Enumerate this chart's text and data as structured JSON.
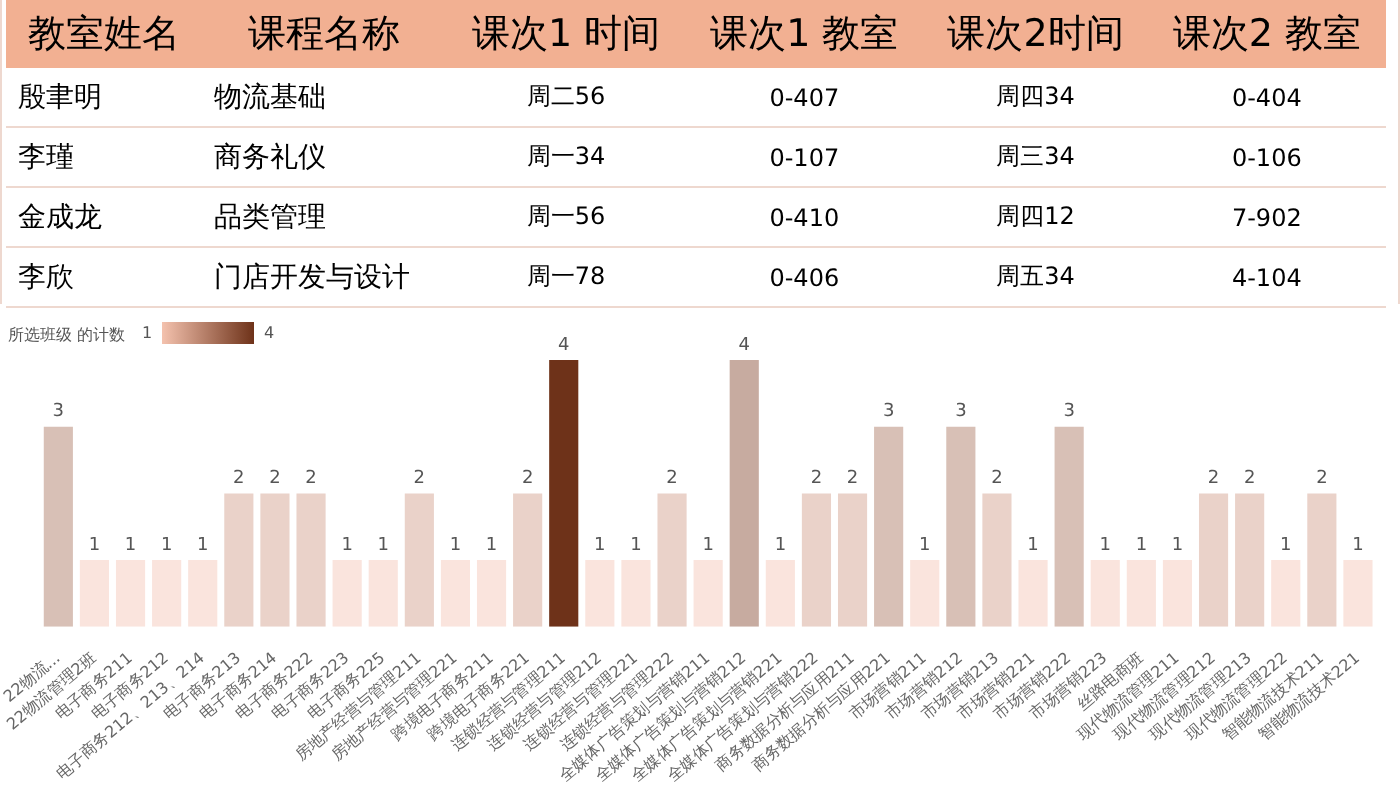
{
  "chart_data": [
    {
      "type": "heatmap",
      "ylabel": "教室姓名",
      "categories": [
        "课程名称",
        "课次1 时间",
        "课次1 教室",
        "课次2时间",
        "课次2 教室"
      ],
      "y_categories": [
        "殷聿明",
        "李瑾",
        "金成龙",
        "李欣"
      ],
      "cells": [
        [
          null,
          null,
          null,
          null,
          null
        ],
        [
          null,
          null,
          null,
          null,
          null
        ],
        [
          null,
          null,
          null,
          null,
          null
        ],
        [
          null,
          null,
          null,
          null,
          null
        ]
      ],
      "cell_labels": [
        [
          "物流基础",
          "周二56",
          "0-407",
          "周四34",
          "0-404"
        ],
        [
          "商务礼仪",
          "周一34",
          "0-107",
          "周三34",
          "0-106"
        ],
        [
          "品类管理",
          "周一56",
          "0-410",
          "周四12",
          "7-902"
        ],
        [
          "门店开发与设计",
          "周一78",
          "0-406",
          "周五34",
          "4-104"
        ]
      ]
    },
    {
      "type": "bar",
      "clabel": "所选班级 的计数",
      "annotations": [
        "1",
        "4"
      ],
      "data_labels": true,
      "categories": [
        "22物流...",
        "22物流管理2班",
        "电子商务211",
        "电子商务212",
        "电子商务212、213、214",
        "电子商务213",
        "电子商务214",
        "电子商务222",
        "电子商务223",
        "电子商务225",
        "房地产经营与管理211",
        "房地产经营与管理221",
        "跨境电子商务211",
        "跨境电子商务221",
        "连锁经营与管理211",
        "连锁经营与管理212",
        "连锁经营与管理221",
        "连锁经营与管理222",
        "全媒体广告策划与营销211",
        "全媒体广告策划与营销212",
        "全媒体广告策划与营销221",
        "全媒体广告策划与营销222",
        "商务数据分析与应用211",
        "商务数据分析与应用221",
        "市场营销211",
        "市场营销212",
        "市场营销213",
        "市场营销221",
        "市场营销222",
        "市场营销223",
        "丝路电商班",
        "现代物流管理211",
        "现代物流管理212",
        "现代物流管理213",
        "现代物流管理222",
        "智能物流技术211",
        "智能物流技术221"
      ],
      "values": [
        3,
        1,
        1,
        1,
        1,
        2,
        2,
        2,
        1,
        1,
        2,
        1,
        1,
        2,
        4,
        1,
        1,
        2,
        1,
        4,
        1,
        2,
        2,
        3,
        1,
        3,
        2,
        1,
        3,
        1,
        1,
        1,
        2,
        2,
        1,
        2,
        1
      ],
      "colors": [
        "#d8c0b6",
        "#fae4dd",
        "#fae4dd",
        "#fae4dd",
        "#fae4dd",
        "#ead2c9",
        "#ead2c9",
        "#ead2c9",
        "#fae4dd",
        "#fae4dd",
        "#ead2c9",
        "#fae4dd",
        "#fae4dd",
        "#ead2c9",
        "#6e3219",
        "#fae4dd",
        "#fae4dd",
        "#ead2c9",
        "#fae4dd",
        "#c7aba0",
        "#fae4dd",
        "#ead2c9",
        "#ead2c9",
        "#d8c0b6",
        "#fae4dd",
        "#d8c0b6",
        "#ead2c9",
        "#fae4dd",
        "#d8c0b6",
        "#fae4dd",
        "#fae4dd",
        "#fae4dd",
        "#ead2c9",
        "#ead2c9",
        "#fae4dd",
        "#ead2c9",
        "#fae4dd"
      ]
    }
  ]
}
